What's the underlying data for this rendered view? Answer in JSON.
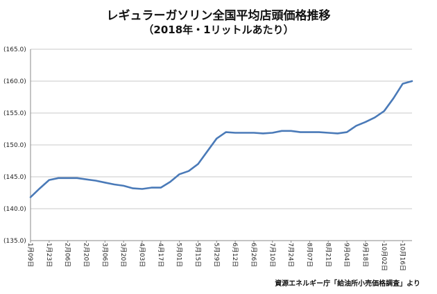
{
  "chart_data": {
    "type": "line",
    "title": "レギュラーガソリン全国平均店頭価格推移",
    "subtitle": "（2018年・1リットルあたり）",
    "source": "資源エネルギー庁「給油所小売価格調査」より",
    "xlabel": "",
    "ylabel": "",
    "ylim": [
      135.0,
      165.0
    ],
    "yticks": [
      "(135.0)",
      "(140.0)",
      "(145.0)",
      "(150.0)",
      "(155.0)",
      "(160.0)",
      "(165.0)"
    ],
    "ytick_values": [
      135,
      140,
      145,
      150,
      155,
      160,
      165
    ],
    "grid": true,
    "legend": "none",
    "line_color": "#4a7ab8",
    "x_tick_labels": [
      "1月09日",
      "1月23日",
      "2月06日",
      "2月20日",
      "3月06日",
      "3月20日",
      "4月03日",
      "4月17日",
      "5月01日",
      "5月15日",
      "5月29日",
      "6月12日",
      "6月26日",
      "7月10日",
      "7月24日",
      "8月07日",
      "8月21日",
      "9月04日",
      "9月18日",
      "10月02日",
      "10月16日"
    ],
    "series": [
      {
        "values": [
          141.8,
          143.2,
          144.5,
          144.8,
          144.8,
          144.8,
          144.6,
          144.4,
          144.1,
          143.8,
          143.6,
          143.2,
          143.1,
          143.3,
          143.3,
          144.2,
          145.4,
          145.9,
          147.0,
          149.0,
          151.0,
          152.0,
          151.9,
          151.9,
          151.9,
          151.8,
          151.9,
          152.2,
          152.2,
          152.0,
          152.0,
          152.0,
          151.9,
          151.8,
          152.0,
          153.0,
          153.6,
          154.3,
          155.3,
          157.3,
          159.6,
          160.0
        ]
      }
    ]
  }
}
